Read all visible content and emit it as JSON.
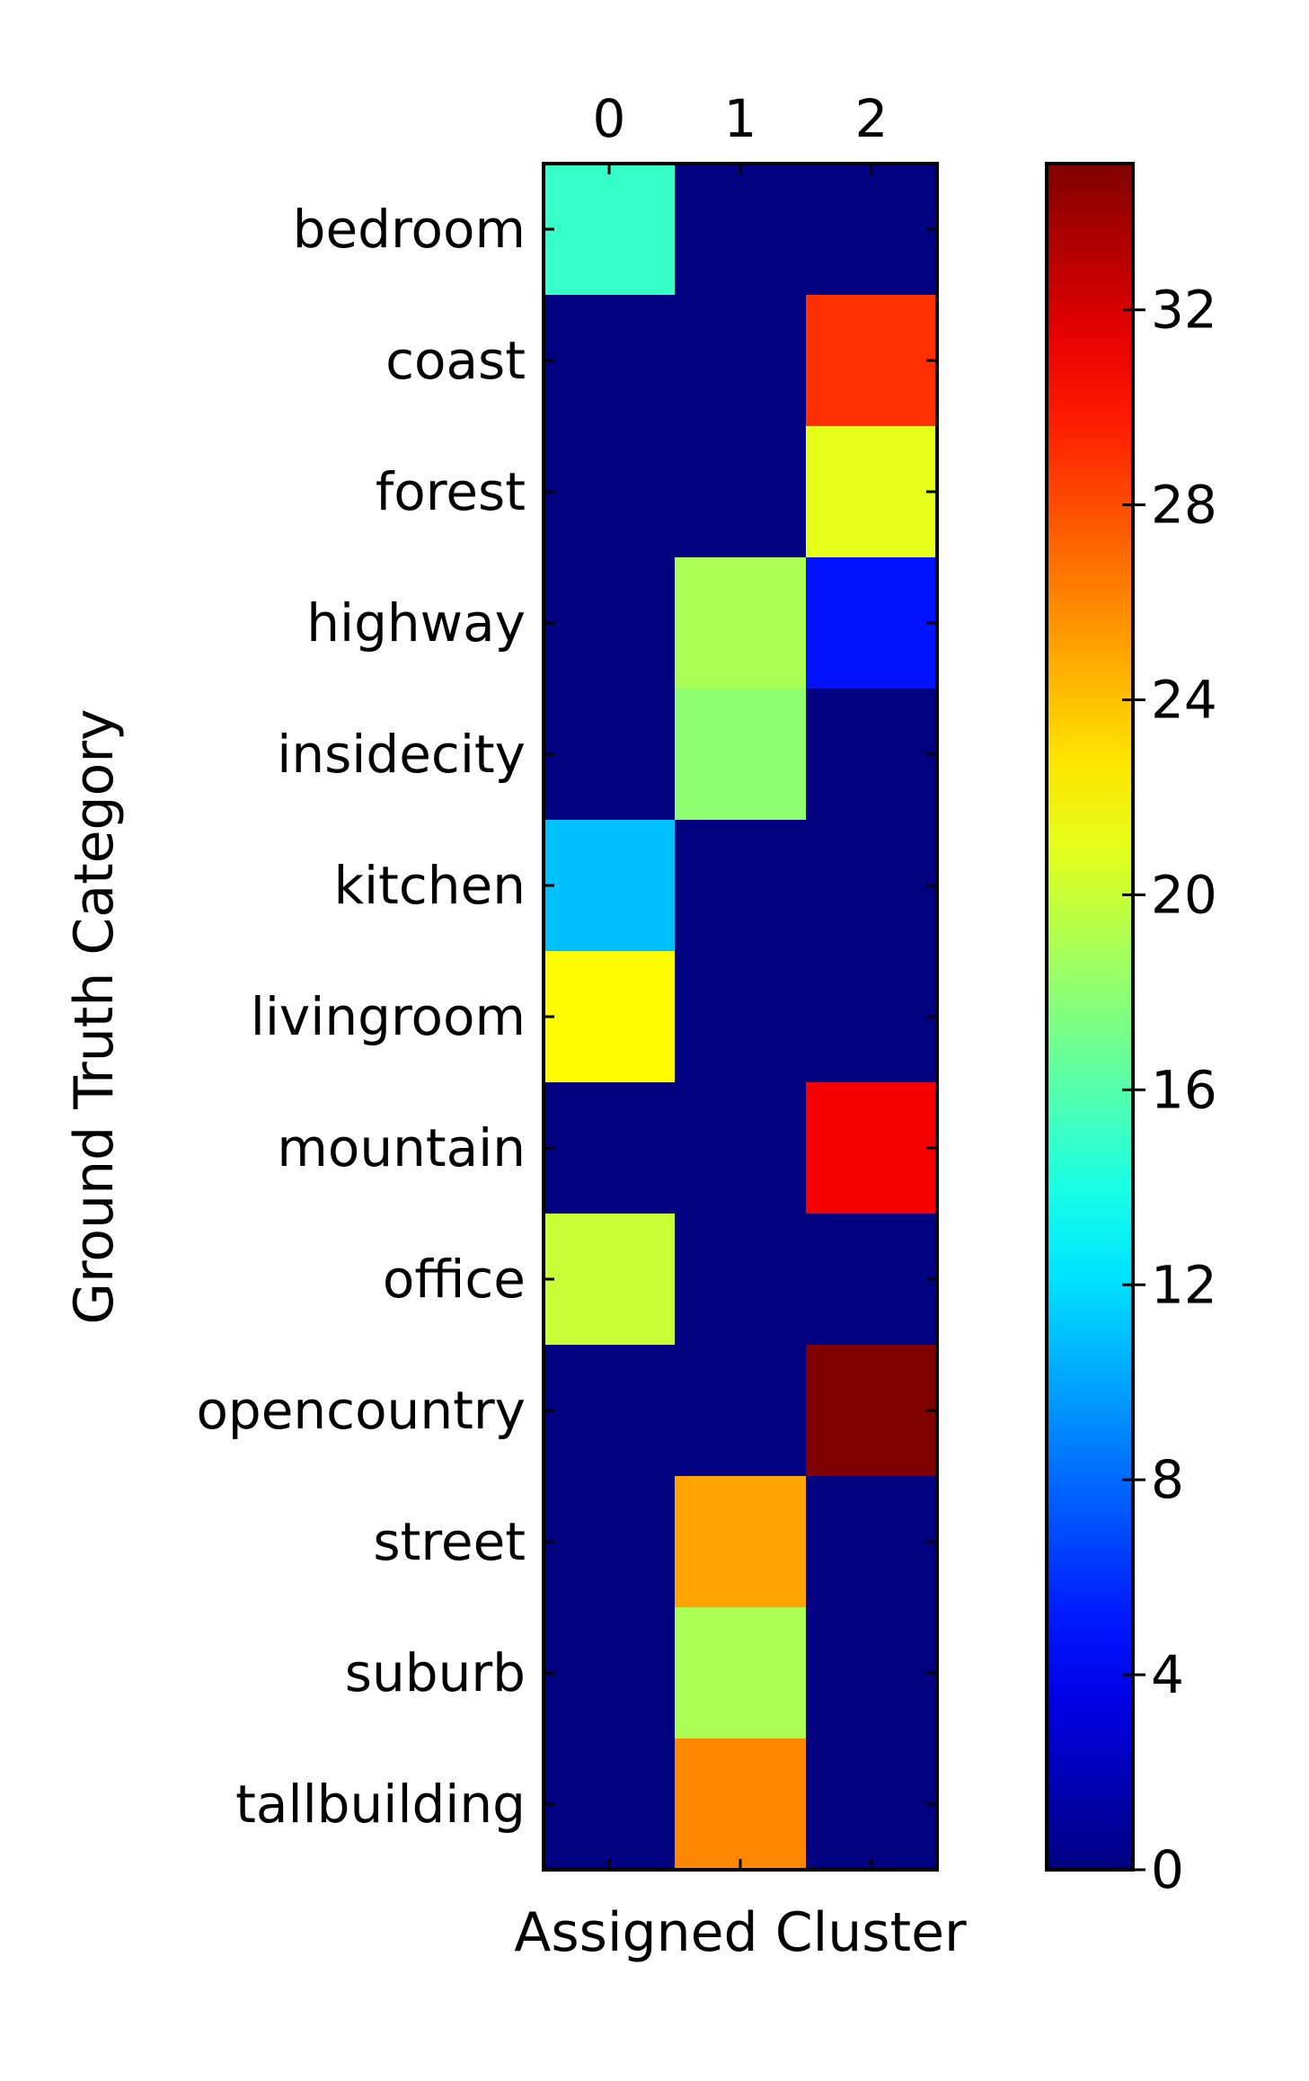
{
  "chart_data": {
    "type": "heatmap",
    "title": "",
    "xlabel": "Assigned Cluster",
    "ylabel": "Ground Truth Category",
    "x_categories": [
      "0",
      "1",
      "2"
    ],
    "y_categories": [
      "bedroom",
      "coast",
      "forest",
      "highway",
      "insidecity",
      "kitchen",
      "livingroom",
      "mountain",
      "office",
      "opencountry",
      "street",
      "suburb",
      "tallbuilding"
    ],
    "values": [
      [
        15,
        0,
        0
      ],
      [
        0,
        0,
        29
      ],
      [
        0,
        0,
        21
      ],
      [
        0,
        19,
        5
      ],
      [
        0,
        18,
        0
      ],
      [
        11,
        0,
        0
      ],
      [
        22,
        0,
        0
      ],
      [
        0,
        0,
        31
      ],
      [
        20,
        0,
        0
      ],
      [
        0,
        0,
        35
      ],
      [
        0,
        25,
        0
      ],
      [
        0,
        19,
        0
      ],
      [
        0,
        26,
        0
      ]
    ],
    "colormap": "jet",
    "colorbar": {
      "vmin": 0,
      "vmax": 35,
      "ticks": [
        0,
        4,
        8,
        12,
        16,
        20,
        24,
        28,
        32
      ]
    },
    "grid": false,
    "legend": "colorbar-right"
  }
}
